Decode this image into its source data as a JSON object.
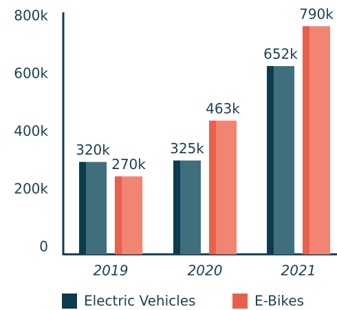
{
  "chart_data": {
    "type": "bar",
    "categories": [
      "2019",
      "2020",
      "2021"
    ],
    "series": [
      {
        "name": "Electric Vehicles",
        "color": "#3f6e7c",
        "accent": "#0d3b4f",
        "values": [
          320000,
          325000,
          652000
        ],
        "value_labels": [
          "320k",
          "325k",
          "652k"
        ]
      },
      {
        "name": "E-Bikes",
        "color": "#f28472",
        "accent": "#e8604c",
        "values": [
          270000,
          463000,
          790000
        ],
        "value_labels": [
          "270k",
          "463k",
          "790k"
        ]
      }
    ],
    "ylim": [
      0,
      800000
    ],
    "yticks": [
      0,
      {
        "value": 200000,
        "label": "200k"
      },
      {
        "value": 400000,
        "label": "400k"
      },
      {
        "value": 600000,
        "label": "600k"
      },
      {
        "value": 800000,
        "label": "800k"
      }
    ],
    "grid": false
  }
}
